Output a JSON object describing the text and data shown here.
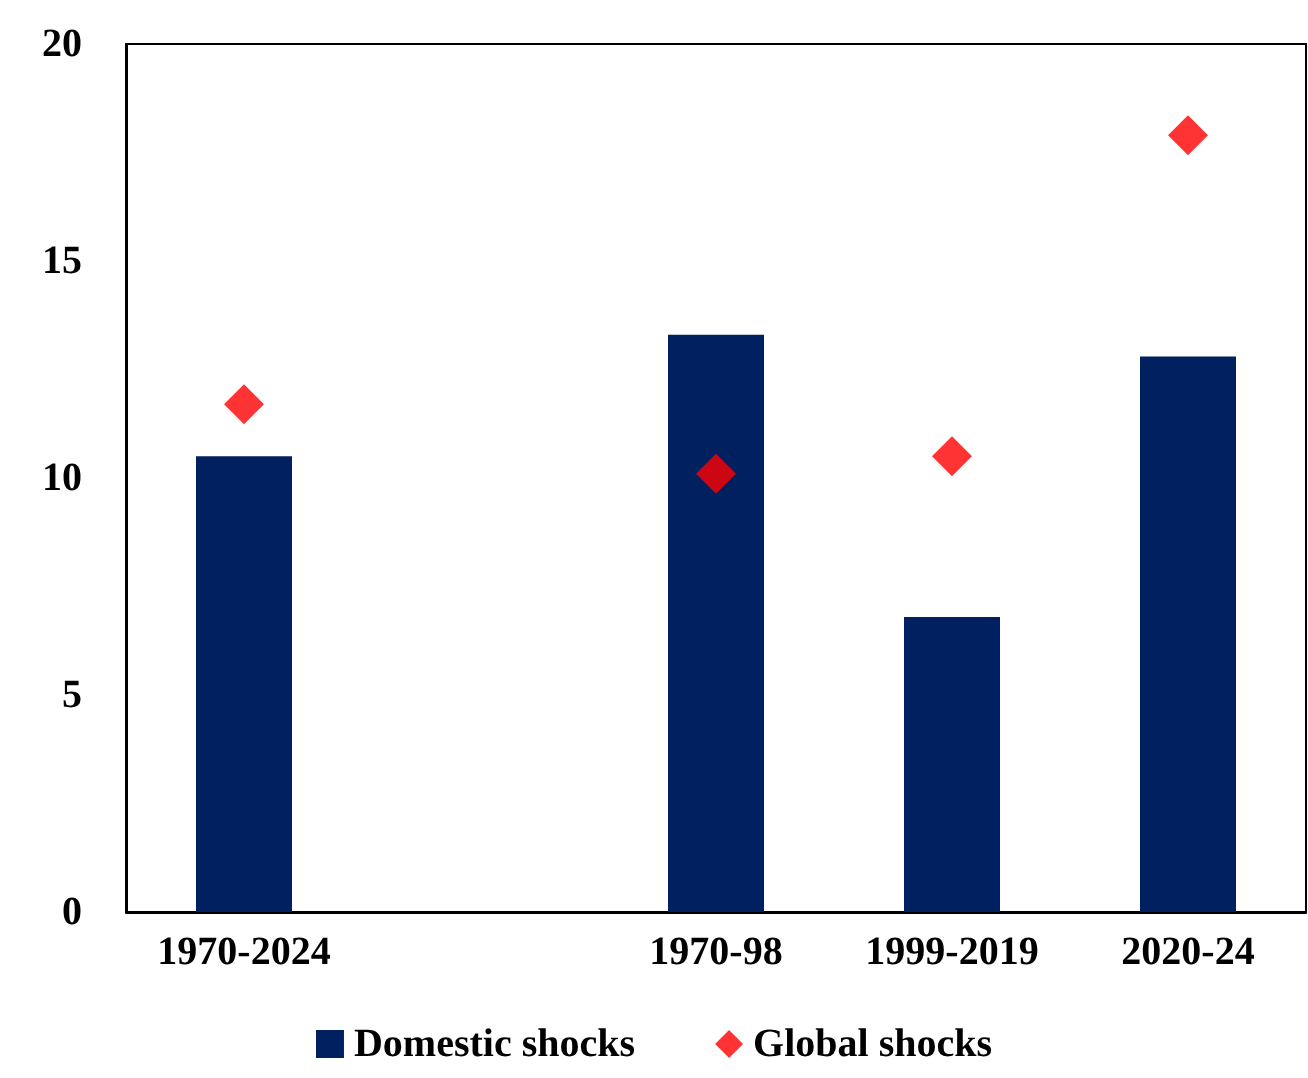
{
  "chart_data": {
    "type": "bar",
    "categories": [
      "1970-2024",
      null,
      "1970-98",
      "1999-2019",
      "2020-24"
    ],
    "series": [
      {
        "name": "Domestic shocks",
        "color": "#002060",
        "values": [
          10.5,
          null,
          13.3,
          6.8,
          12.8
        ]
      },
      {
        "name": "Global shocks",
        "color": "#ff0000",
        "type": "scatter",
        "marker": "diamond",
        "values": [
          11.7,
          null,
          10.1,
          10.5,
          17.9
        ]
      }
    ],
    "ylim": [
      0,
      20
    ],
    "yticks": [
      0,
      5,
      10,
      15,
      20
    ],
    "grid": false,
    "legend": "bottom"
  }
}
